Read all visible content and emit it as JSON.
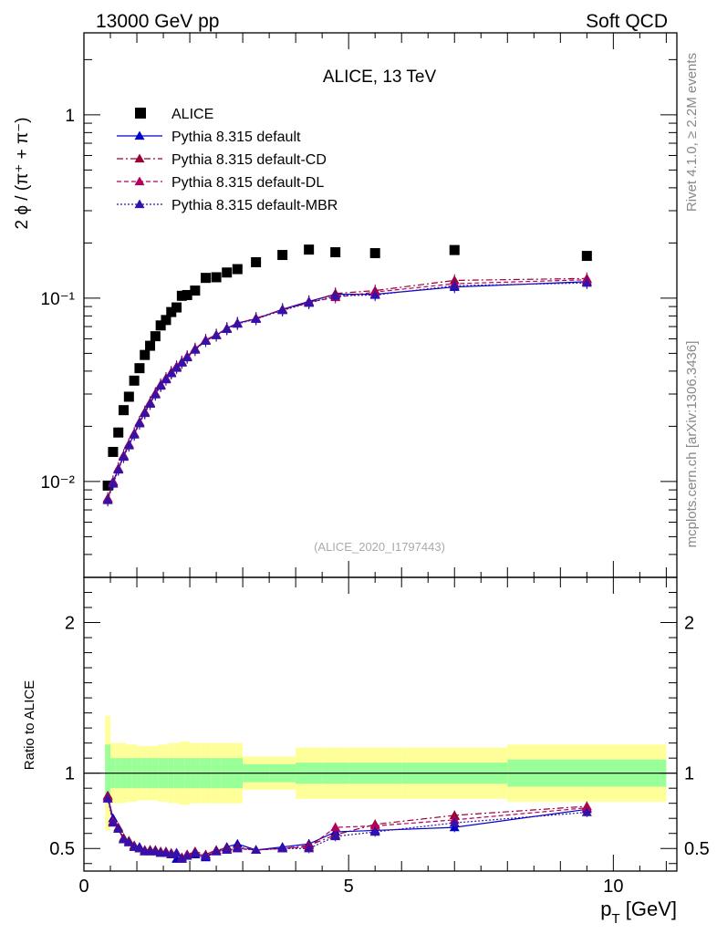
{
  "header": {
    "left": "13000 GeV pp",
    "right": "Soft QCD"
  },
  "side": {
    "rivet": "Rivet 4.1.0, ≥ 2.2M events",
    "mcplots": "mcplots.cern.ch [arXiv:1306.3436]"
  },
  "colors": {
    "data": "#000000",
    "default": "#0000cc",
    "cd": "#990033",
    "dl": "#b3005a",
    "mbr": "#3311aa",
    "band_inner": "#99ff99",
    "band_outer": "#ffff99"
  },
  "chart_data": [
    {
      "type": "scatter",
      "title": "ALICE, 13 TeV",
      "ylabel": "2 ϕ / (π⁺ + π⁻)",
      "analysis_label": "(ALICE_2020_I1797443)",
      "yscale": "log",
      "xlim": [
        0,
        11.2
      ],
      "ylim": [
        0.003,
        2.8
      ],
      "yticks": [
        {
          "v": 0.01,
          "label": "10⁻²"
        },
        {
          "v": 0.1,
          "label": "10⁻¹"
        },
        {
          "v": 1,
          "label": "1"
        }
      ],
      "x": [
        0.45,
        0.55,
        0.65,
        0.75,
        0.85,
        0.95,
        1.05,
        1.15,
        1.25,
        1.35,
        1.45,
        1.55,
        1.65,
        1.75,
        1.85,
        1.95,
        2.1,
        2.3,
        2.5,
        2.7,
        2.9,
        3.25,
        3.75,
        4.25,
        4.75,
        5.5,
        7.0,
        9.5
      ],
      "series": [
        {
          "name": "ALICE",
          "marker": "square",
          "style": "none",
          "values": [
            0.0095,
            0.0145,
            0.0185,
            0.0245,
            0.029,
            0.0355,
            0.0415,
            0.049,
            0.055,
            0.062,
            0.071,
            0.076,
            0.084,
            0.089,
            0.103,
            0.104,
            0.11,
            0.129,
            0.13,
            0.138,
            0.144,
            0.157,
            0.172,
            0.184,
            0.178,
            0.176,
            0.183,
            0.17
          ]
        },
        {
          "name": "Pythia 8.315 default",
          "marker": "triangle",
          "style": "solid",
          "values": [
            0.008,
            0.01,
            0.0117,
            0.0138,
            0.0158,
            0.0182,
            0.0211,
            0.0238,
            0.0267,
            0.0301,
            0.0336,
            0.0364,
            0.0392,
            0.0419,
            0.0448,
            0.0478,
            0.0527,
            0.0588,
            0.0629,
            0.0685,
            0.0732,
            0.077,
            0.087,
            0.096,
            0.105,
            0.105,
            0.115,
            0.123
          ]
        },
        {
          "name": "Pythia 8.315 default-CD",
          "marker": "triangle",
          "style": "dashdot",
          "values": [
            0.0081,
            0.0099,
            0.0118,
            0.0139,
            0.016,
            0.0183,
            0.021,
            0.024,
            0.027,
            0.0303,
            0.0338,
            0.0366,
            0.0395,
            0.0424,
            0.045,
            0.0482,
            0.053,
            0.0592,
            0.0632,
            0.0683,
            0.0728,
            0.0778,
            0.0865,
            0.0945,
            0.106,
            0.11,
            0.125,
            0.128
          ]
        },
        {
          "name": "Pythia 8.315 default-DL",
          "marker": "triangle",
          "style": "dashed",
          "values": [
            0.008,
            0.0098,
            0.0117,
            0.0137,
            0.0158,
            0.0181,
            0.0208,
            0.0237,
            0.0266,
            0.03,
            0.0333,
            0.0362,
            0.039,
            0.0418,
            0.0446,
            0.0476,
            0.0524,
            0.0586,
            0.0628,
            0.068,
            0.0727,
            0.0773,
            0.0862,
            0.095,
            0.101,
            0.108,
            0.12,
            0.126
          ]
        },
        {
          "name": "Pythia 8.315 default-MBR",
          "marker": "triangle",
          "style": "dotted",
          "values": [
            0.0079,
            0.0097,
            0.0116,
            0.0136,
            0.0157,
            0.018,
            0.0207,
            0.0236,
            0.0265,
            0.0298,
            0.0332,
            0.036,
            0.0389,
            0.0416,
            0.0444,
            0.0474,
            0.0522,
            0.0584,
            0.0626,
            0.0678,
            0.0724,
            0.077,
            0.0858,
            0.094,
            0.103,
            0.104,
            0.117,
            0.121
          ]
        }
      ]
    },
    {
      "type": "line",
      "ylabel": "Ratio to ALICE",
      "xlabel": "p_T [GeV]",
      "xlim": [
        0,
        11.2
      ],
      "ylim": [
        0.35,
        2.3
      ],
      "xticks": [
        0,
        5,
        10
      ],
      "yticks": [
        0.5,
        1,
        2
      ],
      "reference": 1,
      "band": {
        "edges": [
          0.4,
          0.5,
          0.6,
          0.7,
          0.8,
          0.9,
          1.0,
          1.1,
          1.2,
          1.3,
          1.4,
          1.5,
          1.6,
          1.7,
          1.8,
          1.9,
          2.0,
          2.2,
          2.4,
          2.6,
          2.8,
          3.0,
          3.5,
          4.0,
          4.5,
          5.0,
          6.0,
          8.0,
          11.0
        ],
        "inner": [
          0.19,
          0.1,
          0.1,
          0.1,
          0.1,
          0.1,
          0.1,
          0.1,
          0.1,
          0.1,
          0.1,
          0.1,
          0.1,
          0.1,
          0.1,
          0.1,
          0.1,
          0.1,
          0.1,
          0.1,
          0.1,
          0.06,
          0.06,
          0.07,
          0.07,
          0.07,
          0.07,
          0.09
        ],
        "outer": [
          0.38,
          0.2,
          0.2,
          0.2,
          0.19,
          0.19,
          0.18,
          0.18,
          0.18,
          0.18,
          0.19,
          0.19,
          0.2,
          0.2,
          0.21,
          0.21,
          0.2,
          0.2,
          0.2,
          0.2,
          0.2,
          0.11,
          0.11,
          0.17,
          0.17,
          0.17,
          0.17,
          0.19
        ]
      },
      "ratios": [
        {
          "name": "Pythia 8.315 default",
          "values": [
            0.85,
            0.7,
            0.63,
            0.56,
            0.55,
            0.51,
            0.51,
            0.48,
            0.49,
            0.48,
            0.47,
            0.47,
            0.46,
            0.43,
            0.44,
            0.46,
            0.46,
            0.44,
            0.48,
            0.51,
            0.53,
            0.49,
            0.51,
            0.53,
            0.61,
            0.62,
            0.64,
            0.76
          ]
        },
        {
          "name": "Pythia 8.315 default-CD",
          "values": [
            0.85,
            0.68,
            0.64,
            0.57,
            0.55,
            0.52,
            0.5,
            0.49,
            0.49,
            0.49,
            0.48,
            0.48,
            0.47,
            0.47,
            0.44,
            0.46,
            0.48,
            0.46,
            0.49,
            0.5,
            0.51,
            0.49,
            0.5,
            0.52,
            0.59,
            0.66,
            0.72,
            0.78
          ]
        },
        {
          "name": "Pythia 8.315 default-DL",
          "values": [
            0.84,
            0.68,
            0.63,
            0.56,
            0.54,
            0.51,
            0.5,
            0.48,
            0.48,
            0.48,
            0.47,
            0.47,
            0.46,
            0.47,
            0.43,
            0.46,
            0.47,
            0.45,
            0.48,
            0.49,
            0.5,
            0.49,
            0.5,
            0.51,
            0.64,
            0.65,
            0.69,
            0.77
          ]
        },
        {
          "name": "Pythia 8.315 default-MBR",
          "values": [
            0.83,
            0.67,
            0.63,
            0.56,
            0.54,
            0.51,
            0.5,
            0.48,
            0.48,
            0.48,
            0.47,
            0.47,
            0.46,
            0.47,
            0.43,
            0.45,
            0.47,
            0.45,
            0.48,
            0.49,
            0.5,
            0.49,
            0.5,
            0.5,
            0.58,
            0.61,
            0.67,
            0.74
          ]
        }
      ]
    }
  ]
}
